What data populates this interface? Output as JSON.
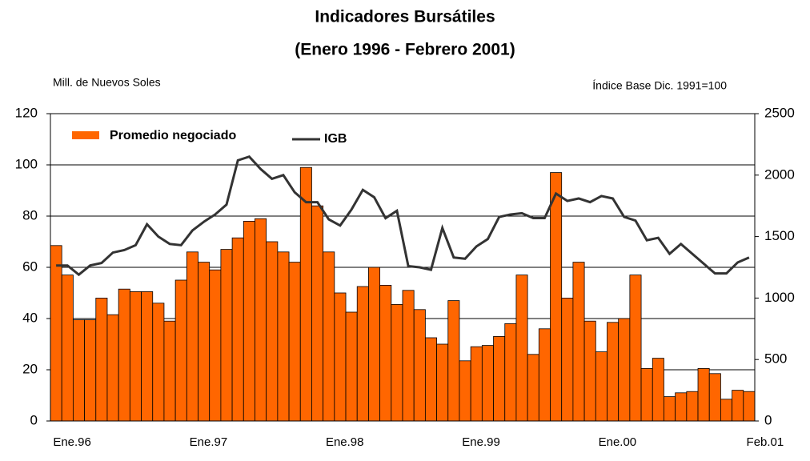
{
  "chart_data": {
    "type": "bar",
    "title": "Indicadores Bursátiles",
    "subtitle": "(Enero 1996 - Febrero 2001)",
    "y_label": "Mill. de Nuevos Soles",
    "y2_label": "Índice Base Dic. 1991=100",
    "categories": [
      "Ene.96",
      null,
      null,
      null,
      null,
      null,
      null,
      null,
      null,
      null,
      null,
      null,
      "Ene.97",
      null,
      null,
      null,
      null,
      null,
      null,
      null,
      null,
      null,
      null,
      null,
      "Ene.98",
      null,
      null,
      null,
      null,
      null,
      null,
      null,
      null,
      null,
      null,
      null,
      "Ene.99",
      null,
      null,
      null,
      null,
      null,
      null,
      null,
      null,
      null,
      null,
      null,
      "Ene.00",
      null,
      null,
      null,
      null,
      null,
      null,
      null,
      null,
      null,
      null,
      null,
      null,
      "Feb.01"
    ],
    "series": [
      {
        "name": "Promedio negociado",
        "type": "bar",
        "color": "#ff6600",
        "values": [
          68.5,
          57,
          39.5,
          39.5,
          48,
          41.5,
          51.5,
          50.5,
          50.5,
          46,
          39,
          55,
          66,
          62,
          59,
          67,
          71.5,
          78,
          79,
          70,
          66,
          62,
          99,
          84,
          66,
          50,
          42.5,
          52.5,
          60,
          53,
          45.5,
          51,
          43.5,
          32.5,
          30,
          47,
          23.5,
          29,
          29.5,
          33,
          38,
          57,
          26,
          36,
          97,
          48,
          62,
          39,
          27,
          38.5,
          40,
          57,
          20.5,
          24.5,
          9.5,
          11,
          11.5,
          20.5,
          18.5,
          8.5,
          12,
          11.5
        ]
      },
      {
        "name": "IGB",
        "type": "line",
        "axis": "y2",
        "color": "#333333",
        "values": [
          1265,
          1265,
          1190,
          1265,
          1285,
          1370,
          1390,
          1430,
          1600,
          1500,
          1440,
          1430,
          1550,
          1620,
          1680,
          1760,
          2120,
          2150,
          2050,
          1970,
          2000,
          1860,
          1780,
          1780,
          1640,
          1590,
          1720,
          1880,
          1820,
          1650,
          1710,
          1260,
          1250,
          1230,
          1570,
          1330,
          1320,
          1420,
          1480,
          1660,
          1680,
          1690,
          1650,
          1650,
          1850,
          1790,
          1810,
          1780,
          1830,
          1810,
          1660,
          1630,
          1470,
          1490,
          1360,
          1440,
          1360,
          1280,
          1200,
          1200,
          1290,
          1330
        ]
      }
    ],
    "ylim": [
      0,
      120
    ],
    "yticks": [
      0,
      20,
      40,
      60,
      80,
      100,
      120
    ],
    "y2lim": [
      0,
      2500
    ],
    "y2ticks": [
      0,
      500,
      1000,
      1500,
      2000,
      2500
    ],
    "grid": true,
    "legend": "top-left"
  }
}
